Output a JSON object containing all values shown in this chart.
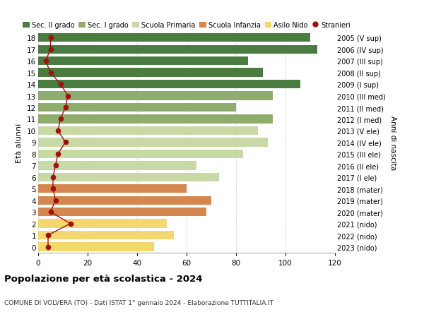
{
  "ages": [
    0,
    1,
    2,
    3,
    4,
    5,
    6,
    7,
    8,
    9,
    10,
    11,
    12,
    13,
    14,
    15,
    16,
    17,
    18
  ],
  "years": [
    "2023 (nido)",
    "2022 (nido)",
    "2021 (nido)",
    "2020 (mater)",
    "2019 (mater)",
    "2018 (mater)",
    "2017 (I ele)",
    "2016 (II ele)",
    "2015 (III ele)",
    "2014 (IV ele)",
    "2013 (V ele)",
    "2012 (I med)",
    "2011 (II med)",
    "2010 (III med)",
    "2009 (I sup)",
    "2008 (II sup)",
    "2007 (III sup)",
    "2006 (IV sup)",
    "2005 (V sup)"
  ],
  "values": [
    47,
    55,
    52,
    68,
    70,
    60,
    73,
    64,
    83,
    93,
    89,
    95,
    80,
    95,
    106,
    91,
    85,
    113,
    110
  ],
  "stranieri": [
    4,
    4,
    13,
    5,
    7,
    6,
    6,
    7,
    8,
    11,
    8,
    9,
    11,
    12,
    9,
    5,
    3,
    5,
    5
  ],
  "bar_colors": {
    "Asilo Nido": "#f5d76e",
    "Scuola Infanzia": "#d4874e",
    "Scuola Primaria": "#c8d9a5",
    "Sec. I grado": "#8fad6a",
    "Sec. II grado": "#4a7c42"
  },
  "age_to_school": {
    "0": "Asilo Nido",
    "1": "Asilo Nido",
    "2": "Asilo Nido",
    "3": "Scuola Infanzia",
    "4": "Scuola Infanzia",
    "5": "Scuola Infanzia",
    "6": "Scuola Primaria",
    "7": "Scuola Primaria",
    "8": "Scuola Primaria",
    "9": "Scuola Primaria",
    "10": "Scuola Primaria",
    "11": "Sec. I grado",
    "12": "Sec. I grado",
    "13": "Sec. I grado",
    "14": "Sec. II grado",
    "15": "Sec. II grado",
    "16": "Sec. II grado",
    "17": "Sec. II grado",
    "18": "Sec. II grado"
  },
  "legend_labels": [
    "Sec. II grado",
    "Sec. I grado",
    "Scuola Primaria",
    "Scuola Infanzia",
    "Asilo Nido",
    "Stranieri"
  ],
  "legend_colors": [
    "#4a7c42",
    "#8fad6a",
    "#c8d9a5",
    "#d4874e",
    "#f5d76e",
    "#a01010"
  ],
  "title": "Popolazione per età scolastica - 2024",
  "subtitle": "COMUNE DI VOLVERA (TO) - Dati ISTAT 1° gennaio 2024 - Elaborazione TUTTITALIA.IT",
  "ylabel_left": "Età alunni",
  "ylabel_right": "Anni di nascita",
  "xlim": [
    0,
    120
  ],
  "xticks": [
    0,
    20,
    40,
    60,
    80,
    100,
    120
  ],
  "bg_color": "#ffffff",
  "grid_color": "#cccccc",
  "stranieri_color": "#a01010"
}
